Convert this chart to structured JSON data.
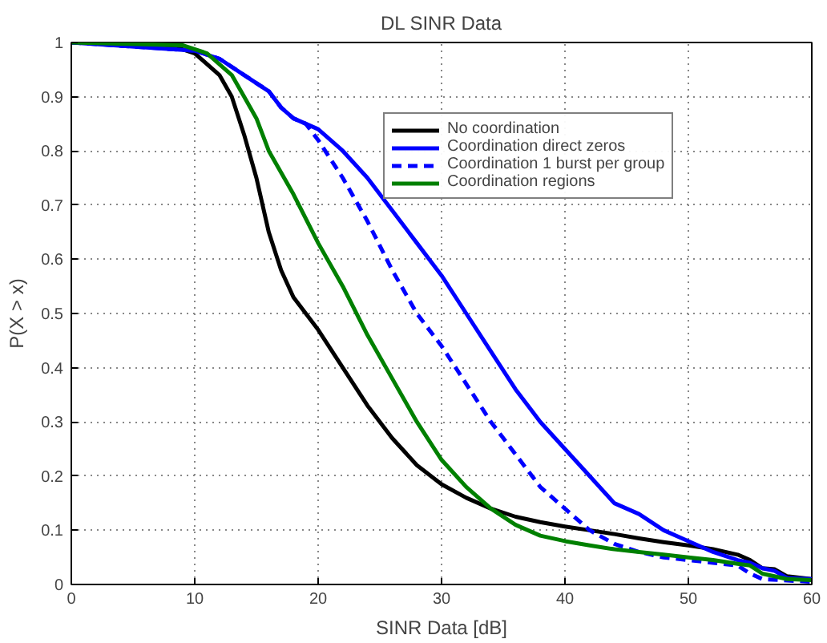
{
  "chart_data": {
    "type": "line",
    "title": "DL SINR Data",
    "xlabel": "SINR Data [dB]",
    "ylabel": "P(X > x)",
    "xlim": [
      0,
      60
    ],
    "ylim": [
      0,
      1
    ],
    "xticks": [
      0,
      10,
      20,
      30,
      40,
      50,
      60
    ],
    "yticks": [
      0,
      0.1,
      0.2,
      0.3,
      0.4,
      0.5,
      0.6,
      0.7,
      0.8,
      0.9,
      1
    ],
    "grid": true,
    "legend": "top right",
    "marker": "none",
    "series": [
      {
        "name": "No coordination",
        "color": "#000000",
        "line_style": "solid",
        "x": [
          0,
          8,
          10,
          12,
          13,
          14,
          15,
          16,
          17,
          18,
          20,
          22,
          24,
          25,
          26,
          28,
          30,
          32,
          34,
          36,
          38,
          40,
          42,
          44,
          46,
          48,
          50,
          52,
          54,
          55,
          56,
          57,
          58,
          60
        ],
        "values": [
          1,
          0.995,
          0.98,
          0.94,
          0.9,
          0.83,
          0.75,
          0.65,
          0.58,
          0.53,
          0.47,
          0.4,
          0.33,
          0.3,
          0.27,
          0.22,
          0.185,
          0.16,
          0.14,
          0.125,
          0.115,
          0.107,
          0.1,
          0.093,
          0.085,
          0.078,
          0.072,
          0.065,
          0.055,
          0.045,
          0.03,
          0.028,
          0.015,
          0.01
        ]
      },
      {
        "name": "Coordination direct zeros",
        "color": "#0000ff",
        "line_style": "solid",
        "x": [
          0,
          10,
          12,
          14,
          16,
          17,
          18,
          20,
          22,
          24,
          26,
          28,
          30,
          32,
          34,
          36,
          38,
          40,
          42,
          44,
          46,
          48,
          50,
          52,
          54,
          55,
          56,
          57,
          58,
          60
        ],
        "values": [
          1,
          0.985,
          0.97,
          0.94,
          0.91,
          0.88,
          0.86,
          0.84,
          0.8,
          0.75,
          0.69,
          0.63,
          0.57,
          0.5,
          0.43,
          0.36,
          0.3,
          0.25,
          0.2,
          0.15,
          0.13,
          0.1,
          0.08,
          0.06,
          0.045,
          0.04,
          0.03,
          0.025,
          0.012,
          0.01
        ]
      },
      {
        "name": "Coordination 1 burst per group",
        "color": "#0000ff",
        "line_style": "dashed",
        "x": [
          0,
          10,
          12,
          14,
          16,
          17,
          18,
          19,
          20,
          22,
          24,
          26,
          28,
          30,
          32,
          34,
          36,
          38,
          40,
          42,
          44,
          46,
          48,
          50,
          52,
          54,
          55,
          56,
          60
        ],
        "values": [
          1,
          0.985,
          0.97,
          0.94,
          0.91,
          0.88,
          0.86,
          0.85,
          0.82,
          0.75,
          0.67,
          0.58,
          0.5,
          0.44,
          0.37,
          0.3,
          0.24,
          0.18,
          0.14,
          0.1,
          0.075,
          0.06,
          0.05,
          0.045,
          0.04,
          0.035,
          0.02,
          0.01,
          0.005
        ]
      },
      {
        "name": "Coordination regions",
        "color": "#008000",
        "line_style": "solid",
        "x": [
          0,
          9,
          11,
          13,
          14,
          15,
          16,
          18,
          20,
          22,
          24,
          26,
          28,
          30,
          32,
          34,
          36,
          38,
          40,
          42,
          44,
          46,
          48,
          50,
          52,
          54,
          55,
          56,
          58,
          60
        ],
        "values": [
          1,
          0.995,
          0.98,
          0.94,
          0.9,
          0.86,
          0.8,
          0.72,
          0.63,
          0.55,
          0.46,
          0.38,
          0.3,
          0.23,
          0.18,
          0.14,
          0.11,
          0.09,
          0.08,
          0.072,
          0.065,
          0.06,
          0.055,
          0.05,
          0.045,
          0.038,
          0.035,
          0.02,
          0.01,
          0.008
        ]
      }
    ]
  }
}
